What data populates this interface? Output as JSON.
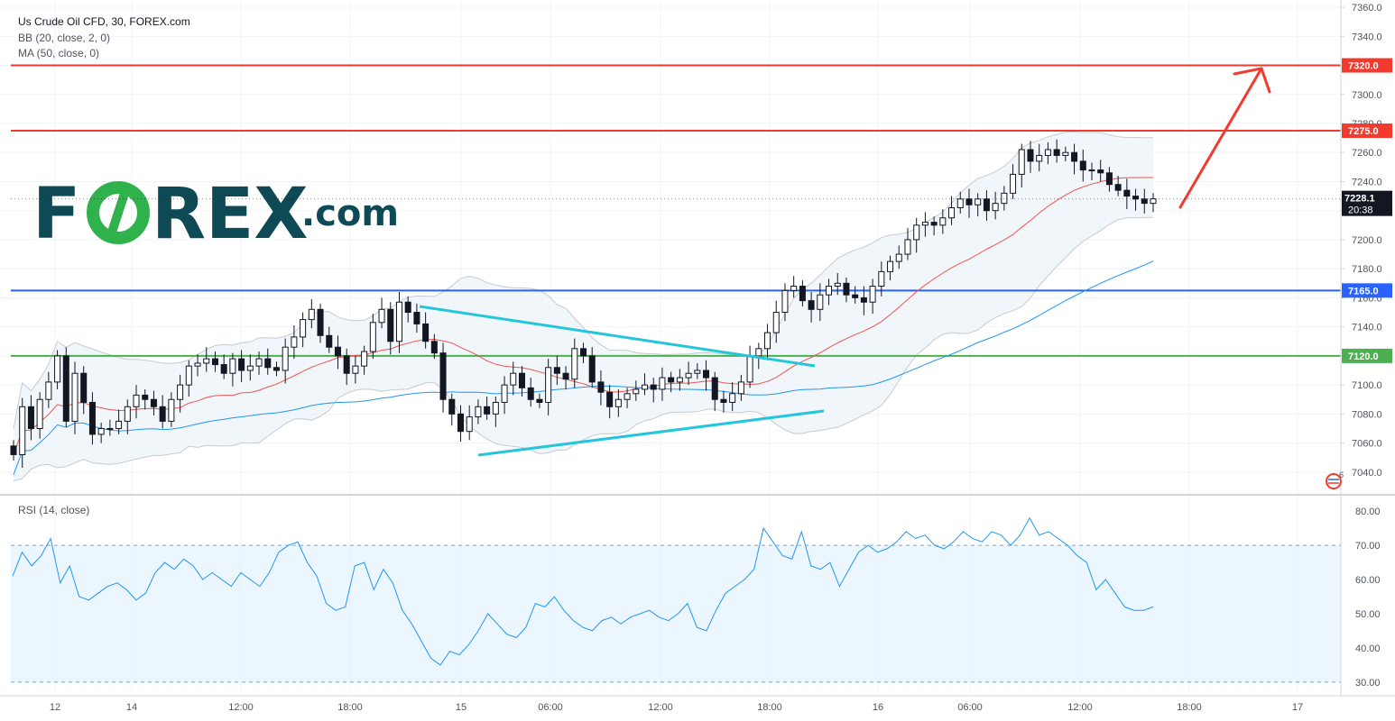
{
  "header": {
    "symbol_line": "Us Crude Oil CFD, 30, FOREX.com",
    "bb_line": "BB (20, close, 2, 0)",
    "ma_line": "MA (50, close, 0)",
    "rsi_line": "RSI (14, close)"
  },
  "logo": {
    "word_left": "F",
    "word_right": "REX",
    "domain": ".com",
    "text_color": "#0d4a55",
    "accent_color": "#2fb14c"
  },
  "colors": {
    "resistance": "#f23a2e",
    "support_blue": "#2962ff",
    "support_green": "#4caf50",
    "trendline": "#26c6da",
    "bb_band": "#bfc3cc",
    "bb_fill": "#eef4f9",
    "ma20": "#ef5350",
    "ma50": "#2196f3",
    "rsi_line": "#2196f3",
    "rsi_fill": "#e3f2fd",
    "candle": "#131722",
    "current_price_bg": "#131722"
  },
  "price_axis": {
    "ticks": [
      "7360.0",
      "7340.0",
      "7320.0",
      "7300.0",
      "7280.0",
      "7260.0",
      "7240.0",
      "7220.0",
      "7200.0",
      "7180.0",
      "7160.0",
      "7140.0",
      "7120.0",
      "7100.0",
      "7080.0",
      "7060.0",
      "7040.0"
    ]
  },
  "rsi_axis": {
    "ticks": [
      "80.00",
      "70.00",
      "60.00",
      "50.00",
      "40.00",
      "30.00"
    ]
  },
  "time_axis": {
    "ticks": [
      "12",
      "14",
      "12:00",
      "18:00",
      "15",
      "06:00",
      "12:00",
      "18:00",
      "16",
      "06:00",
      "12:00",
      "18:00",
      "17"
    ]
  },
  "levels": [
    {
      "label": "7320.0",
      "value": 7320,
      "kind": "resistance"
    },
    {
      "label": "7275.0",
      "value": 7275,
      "kind": "resistance"
    },
    {
      "label": "7165.0",
      "value": 7165,
      "kind": "support_blue"
    },
    {
      "label": "7120.0",
      "value": 7120,
      "kind": "support_green"
    }
  ],
  "current_price": {
    "label": "7228.1",
    "countdown": "20:38",
    "value": 7228.1
  },
  "event_badge": {
    "count": "6"
  },
  "chart_data": {
    "type": "candlestick",
    "price_range": [
      7025,
      7365
    ],
    "rsi_range": [
      26,
      84
    ],
    "rsi_bands": [
      30,
      70
    ],
    "closes": [
      7052,
      7085,
      7070,
      7090,
      7102,
      7120,
      7075,
      7108,
      7088,
      7066,
      7070,
      7070,
      7075,
      7085,
      7093,
      7090,
      7085,
      7075,
      7090,
      7100,
      7113,
      7115,
      7118,
      7114,
      7108,
      7118,
      7110,
      7113,
      7118,
      7112,
      7110,
      7126,
      7133,
      7145,
      7152,
      7134,
      7126,
      7120,
      7108,
      7113,
      7123,
      7143,
      7152,
      7130,
      7157,
      7150,
      7142,
      7130,
      7122,
      7090,
      7080,
      7068,
      7078,
      7085,
      7080,
      7088,
      7100,
      7108,
      7098,
      7090,
      7088,
      7112,
      7108,
      7104,
      7125,
      7120,
      7102,
      7095,
      7085,
      7090,
      7094,
      7097,
      7100,
      7097,
      7105,
      7102,
      7105,
      7108,
      7110,
      7105,
      7090,
      7088,
      7094,
      7102,
      7120,
      7125,
      7136,
      7150,
      7165,
      7168,
      7158,
      7152,
      7162,
      7168,
      7170,
      7162,
      7160,
      7157,
      7168,
      7178,
      7185,
      7190,
      7200,
      7210,
      7212,
      7210,
      7215,
      7222,
      7228,
      7224,
      7228,
      7220,
      7225,
      7232,
      7245,
      7262,
      7254,
      7258,
      7262,
      7258,
      7260,
      7254,
      7248,
      7248,
      7246,
      7238,
      7234,
      7230,
      7228,
      7225,
      7228.1
    ],
    "rsi": [
      61,
      68,
      64,
      67,
      72,
      59,
      64,
      55,
      54,
      56,
      58,
      59,
      57,
      54,
      56,
      62,
      65,
      63,
      66,
      64,
      60,
      62,
      60,
      58,
      62,
      60,
      58,
      62,
      68,
      70,
      71,
      65,
      61,
      53,
      51,
      52,
      64,
      65,
      57,
      63,
      59,
      51,
      47,
      42,
      37,
      35,
      39,
      38,
      41,
      45,
      50,
      47,
      44,
      43,
      46,
      53,
      52,
      55,
      51,
      48,
      46,
      45,
      48,
      49,
      47,
      49,
      50,
      51,
      49,
      48,
      50,
      53,
      46,
      45,
      51,
      56,
      58,
      60,
      63,
      75,
      71,
      67,
      66,
      74,
      64,
      63,
      65,
      58,
      63,
      68,
      70,
      68,
      69,
      71,
      74,
      72,
      73,
      70,
      69,
      71,
      74,
      72,
      71,
      74,
      73,
      70,
      73,
      78,
      73,
      74,
      72,
      70,
      67,
      65,
      57,
      60,
      56,
      52,
      51,
      51,
      52
    ]
  }
}
